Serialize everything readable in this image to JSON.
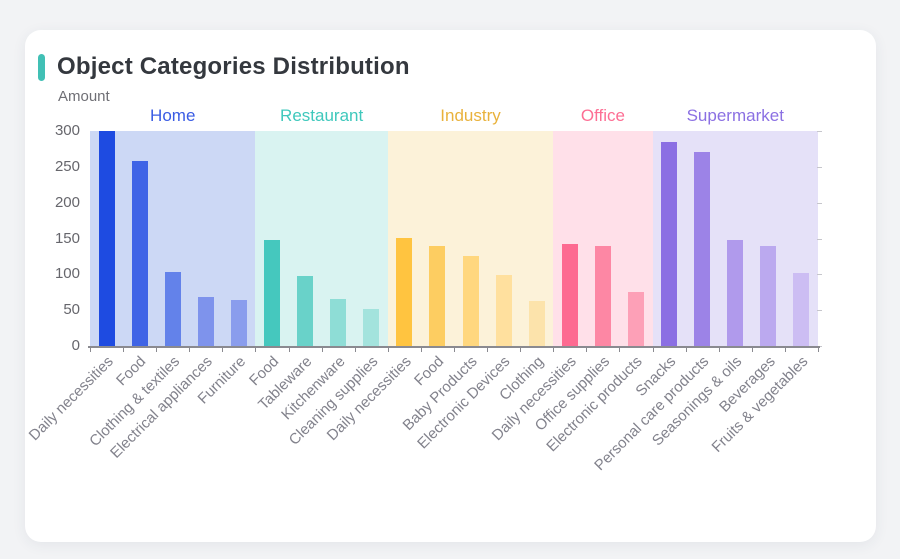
{
  "page": {
    "background_color": "#f2f3f5"
  },
  "card": {
    "background_color": "#ffffff"
  },
  "header": {
    "title": "Object Categories Distribution",
    "accent_color": "#41c0b5"
  },
  "chart_data": {
    "type": "bar",
    "title": "Object Categories Distribution",
    "ylabel": "Amount",
    "xlabel": "",
    "ylim": [
      0,
      300
    ],
    "yticks": [
      0,
      50,
      100,
      150,
      200,
      250,
      300
    ],
    "grid": false,
    "legend_position": "group-labels-above-plot",
    "axis_color": "#8a8a90",
    "groups": [
      {
        "name": "Home",
        "label_color": "#3a5ce4",
        "panel_color": "#ccd8f5",
        "categories": [
          "Daily necessities",
          "Food",
          "Clothing & textiles",
          "Electrical appliances",
          "Furniture"
        ],
        "values": [
          300,
          258,
          103,
          69,
          64
        ],
        "bar_colors": [
          "#1e4be1",
          "#3f64e6",
          "#6382ea",
          "#7e93ec",
          "#8a9ded"
        ]
      },
      {
        "name": "Restaurant",
        "label_color": "#3fc8bc",
        "panel_color": "#d9f3f1",
        "categories": [
          "Food",
          "Tableware",
          "Kitchenware",
          "Cleaning supplies"
        ],
        "values": [
          148,
          97,
          65,
          51
        ],
        "bar_colors": [
          "#45c8be",
          "#69d2c9",
          "#8eddd6",
          "#a3e3dd"
        ]
      },
      {
        "name": "Industry",
        "label_color": "#e9b23c",
        "panel_color": "#fcf2d9",
        "categories": [
          "Daily necessities",
          "Food",
          "Baby Products",
          "Electronic Devices",
          "Clothing"
        ],
        "values": [
          151,
          139,
          126,
          99,
          63
        ],
        "bar_colors": [
          "#ffc440",
          "#fdcd61",
          "#ffd77e",
          "#ffe09e",
          "#fce3ab"
        ]
      },
      {
        "name": "Office",
        "label_color": "#fd6e94",
        "panel_color": "#ffe0e9",
        "categories": [
          "Daily necessities",
          "Office supplies",
          "Electronic products"
        ],
        "values": [
          143,
          139,
          75
        ],
        "bar_colors": [
          "#fd6a91",
          "#fd87a4",
          "#fda0b7"
        ]
      },
      {
        "name": "Supermarket",
        "label_color": "#8b70e3",
        "panel_color": "#e5e1f8",
        "categories": [
          "Snacks",
          "Personal care products",
          "Seasonings & oils",
          "Beverages",
          "Fruits & vegetables"
        ],
        "values": [
          285,
          271,
          148,
          140,
          102
        ],
        "bar_colors": [
          "#8b6fe3",
          "#9c83e7",
          "#b09aec",
          "#bba9ef",
          "#ccbdf3"
        ]
      }
    ]
  }
}
